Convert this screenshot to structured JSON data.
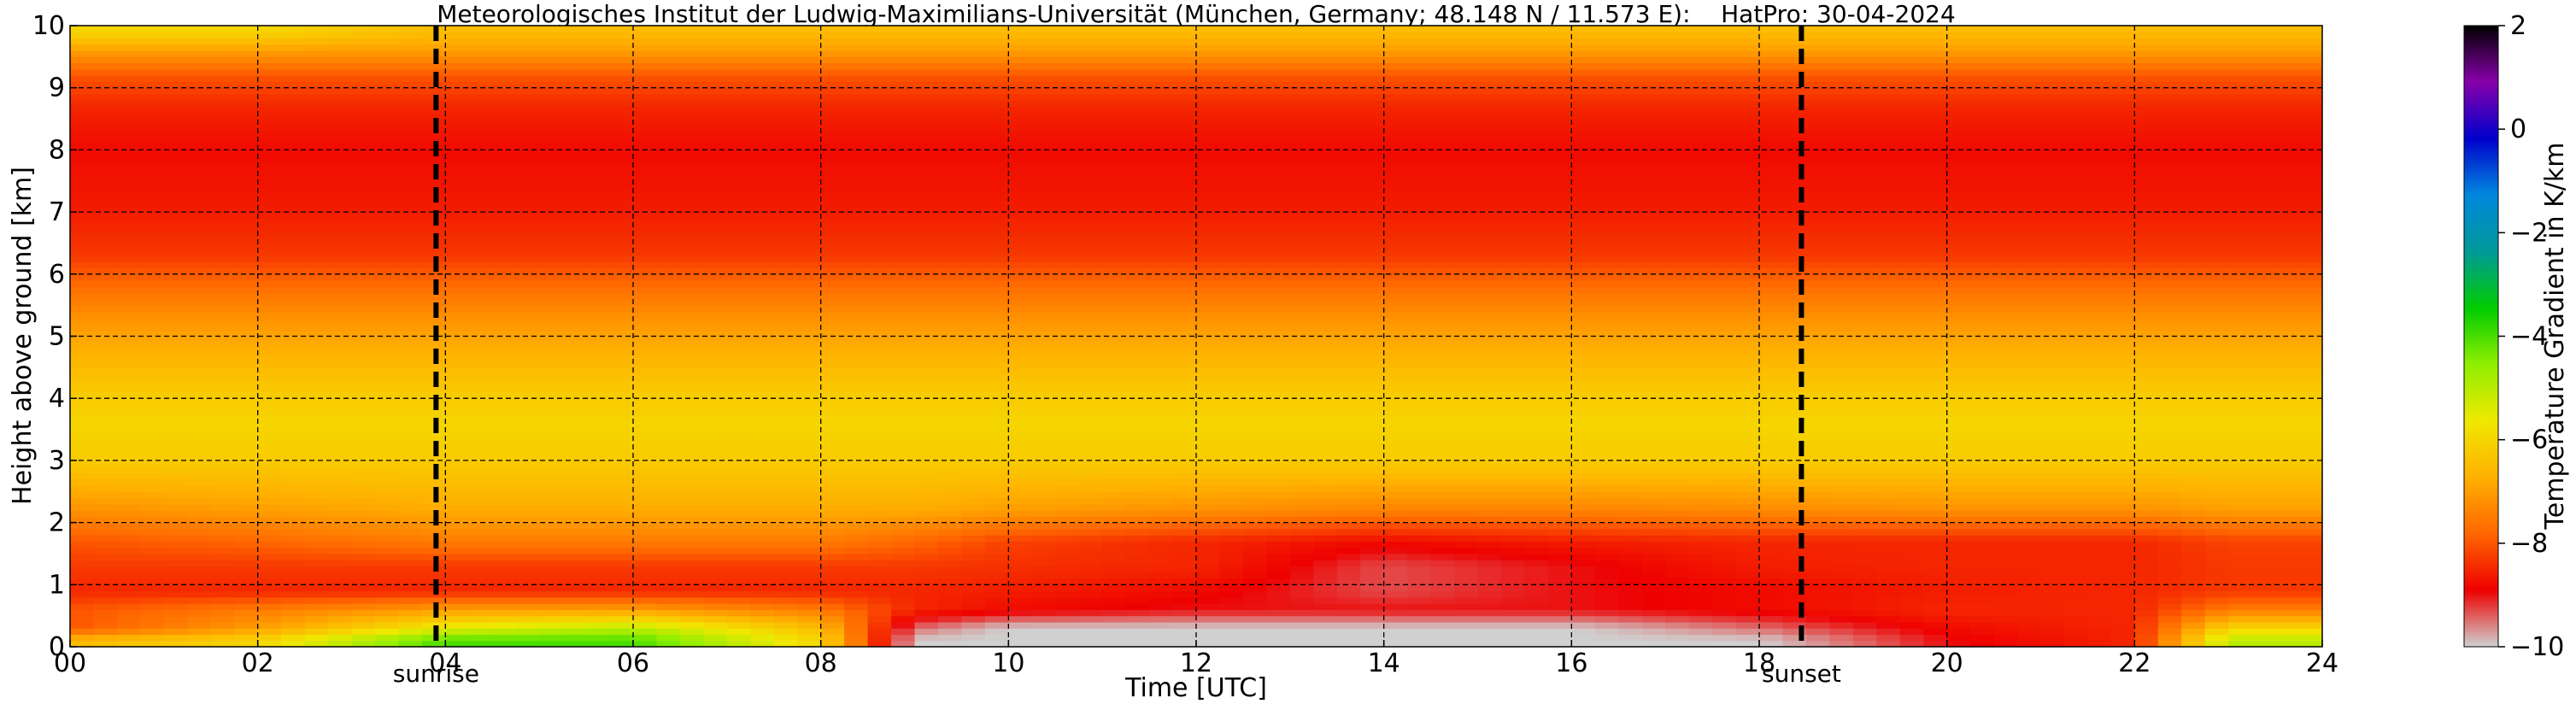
{
  "chart_data": {
    "type": "heatmap",
    "title": "Meteorologisches Institut der Ludwig-Maximilians-Universität (München, Germany; 48.148 N / 11.573 E):    HatPro: 30-04-2024",
    "xlabel": "Time [UTC]",
    "ylabel": "Height above ground [km]",
    "colorbar_label": "Temperature Gradient in K/km",
    "xlim": [
      0,
      24
    ],
    "ylim": [
      0,
      10
    ],
    "x_ticks": [
      0,
      2,
      4,
      6,
      8,
      10,
      12,
      14,
      16,
      18,
      20,
      22,
      24
    ],
    "x_tick_labels": [
      "00",
      "02",
      "04",
      "06",
      "08",
      "10",
      "12",
      "14",
      "16",
      "18",
      "20",
      "22",
      "24"
    ],
    "y_ticks": [
      0,
      1,
      2,
      3,
      4,
      5,
      6,
      7,
      8,
      9,
      10
    ],
    "y_tick_labels": [
      "0",
      "1",
      "2",
      "3",
      "4",
      "5",
      "6",
      "7",
      "8",
      "9",
      "10"
    ],
    "colorbar_range": [
      -10,
      2
    ],
    "colorbar_ticks": [
      -10,
      -8,
      -6,
      -4,
      -2,
      0,
      2
    ],
    "colorbar_tick_labels": [
      "−10",
      "−8",
      "−6",
      "−4",
      "−2",
      "0",
      "2"
    ],
    "grid": true,
    "colormap": [
      "#d0d0d0",
      "#ee0000",
      "#ff6600",
      "#ffb000",
      "#f0e800",
      "#90ee00",
      "#00cc00",
      "#009999",
      "#0088dd",
      "#0000cc",
      "#8800aa",
      "#000000"
    ],
    "events": [
      {
        "label": "sunrise",
        "time": 3.9
      },
      {
        "label": "sunset",
        "time": 18.45
      }
    ],
    "profile_heights_km": [
      0.1,
      0.3,
      0.6,
      0.9,
      1.3,
      1.7,
      2.2,
      3.0,
      3.6,
      4.2,
      5.0,
      5.7,
      6.3,
      7.0,
      8.0,
      8.7,
      9.2,
      9.6,
      9.9
    ],
    "profile_times_utc": [
      0,
      2,
      4,
      6,
      8,
      9,
      10,
      12,
      14,
      16,
      18,
      20,
      22,
      23,
      24
    ],
    "values": [
      [
        -6.5,
        -6.0,
        -4.0,
        -4.0,
        -6.0,
        -10.0,
        -10.0,
        -10.0,
        -10.0,
        -10.0,
        -10.0,
        -9.0,
        -8.5,
        -5.0,
        -5.0
      ],
      [
        -8.0,
        -7.0,
        -5.5,
        -5.0,
        -6.5,
        -9.5,
        -10.0,
        -10.0,
        -10.0,
        -10.0,
        -9.5,
        -8.8,
        -8.5,
        -6.0,
        -6.0
      ],
      [
        -8.0,
        -7.5,
        -7.0,
        -7.0,
        -7.5,
        -8.5,
        -8.8,
        -9.0,
        -9.0,
        -9.0,
        -8.8,
        -8.5,
        -8.5,
        -7.5,
        -7.5
      ],
      [
        -8.5,
        -8.5,
        -8.5,
        -8.5,
        -8.5,
        -8.5,
        -8.6,
        -8.8,
        -9.3,
        -9.0,
        -8.8,
        -8.6,
        -8.5,
        -8.3,
        -8.3
      ],
      [
        -8.3,
        -8.3,
        -8.3,
        -8.3,
        -8.3,
        -8.3,
        -8.4,
        -8.5,
        -9.3,
        -9.0,
        -8.6,
        -8.5,
        -8.5,
        -8.3,
        -8.3
      ],
      [
        -8.0,
        -7.8,
        -7.5,
        -7.5,
        -7.5,
        -7.8,
        -8.2,
        -8.5,
        -8.8,
        -8.6,
        -8.5,
        -8.5,
        -8.5,
        -8.2,
        -8.2
      ],
      [
        -7.2,
        -7.0,
        -6.8,
        -6.8,
        -6.8,
        -6.8,
        -7.0,
        -7.2,
        -7.4,
        -7.4,
        -7.3,
        -7.2,
        -7.2,
        -7.0,
        -7.0
      ],
      [
        -6.2,
        -6.2,
        -6.2,
        -6.2,
        -6.2,
        -6.2,
        -6.2,
        -6.2,
        -6.2,
        -6.2,
        -6.2,
        -6.2,
        -6.2,
        -6.2,
        -6.2
      ],
      [
        -6.0,
        -6.0,
        -6.0,
        -6.0,
        -6.0,
        -6.0,
        -6.0,
        -6.0,
        -6.0,
        -6.0,
        -6.0,
        -6.0,
        -6.0,
        -6.0,
        -6.0
      ],
      [
        -6.3,
        -6.3,
        -6.3,
        -6.3,
        -6.3,
        -6.3,
        -6.3,
        -6.3,
        -6.3,
        -6.3,
        -6.3,
        -6.3,
        -6.3,
        -6.3,
        -6.3
      ],
      [
        -6.9,
        -6.9,
        -6.9,
        -6.9,
        -6.9,
        -6.9,
        -6.9,
        -6.9,
        -6.9,
        -6.9,
        -6.9,
        -6.9,
        -6.9,
        -6.9,
        -6.9
      ],
      [
        -7.6,
        -7.6,
        -7.6,
        -7.6,
        -7.6,
        -7.6,
        -7.6,
        -7.6,
        -7.6,
        -7.6,
        -7.6,
        -7.6,
        -7.6,
        -7.6,
        -7.6
      ],
      [
        -8.3,
        -8.3,
        -8.3,
        -8.3,
        -8.3,
        -8.3,
        -8.3,
        -8.3,
        -8.3,
        -8.3,
        -8.3,
        -8.3,
        -8.3,
        -8.3,
        -8.3
      ],
      [
        -8.6,
        -8.6,
        -8.6,
        -8.6,
        -8.6,
        -8.6,
        -8.6,
        -8.6,
        -8.6,
        -8.6,
        -8.6,
        -8.6,
        -8.6,
        -8.6,
        -8.6
      ],
      [
        -8.8,
        -8.8,
        -8.8,
        -8.8,
        -8.8,
        -8.8,
        -8.8,
        -8.8,
        -8.8,
        -8.8,
        -8.8,
        -8.8,
        -8.8,
        -8.8,
        -8.8
      ],
      [
        -8.5,
        -8.5,
        -8.5,
        -8.5,
        -8.5,
        -8.5,
        -8.5,
        -8.5,
        -8.5,
        -8.5,
        -8.5,
        -8.5,
        -8.5,
        -8.5,
        -8.5
      ],
      [
        -8.0,
        -8.0,
        -8.0,
        -8.0,
        -8.0,
        -8.0,
        -8.0,
        -8.0,
        -8.0,
        -8.0,
        -8.0,
        -8.0,
        -8.0,
        -8.0,
        -8.0
      ],
      [
        -7.0,
        -7.0,
        -7.0,
        -7.0,
        -7.0,
        -7.0,
        -7.0,
        -7.0,
        -7.0,
        -7.0,
        -7.0,
        -7.0,
        -7.0,
        -7.0,
        -7.0
      ],
      [
        -6.0,
        -6.0,
        -6.5,
        -6.5,
        -6.5,
        -6.5,
        -6.5,
        -6.5,
        -6.5,
        -6.5,
        -6.5,
        -6.5,
        -6.5,
        -6.5,
        -6.5
      ]
    ]
  }
}
